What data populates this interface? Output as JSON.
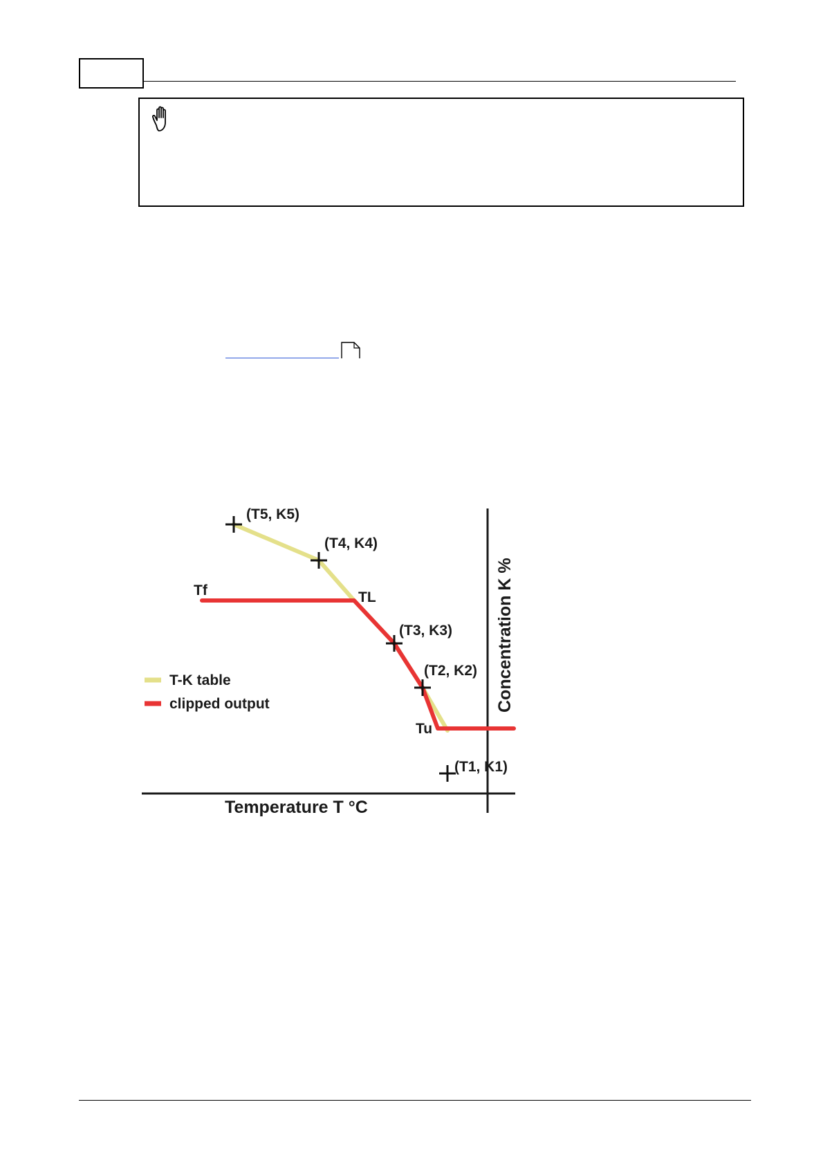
{
  "chart_data": {
    "type": "line",
    "xlabel": "Temperature T °C",
    "ylabel": "Concentration K %",
    "legend": {
      "placement": "left",
      "entries": [
        {
          "label": "T-K table",
          "color": "#e4e08a"
        },
        {
          "label": "clipped output",
          "color": "#e83434"
        }
      ]
    },
    "point_labels": [
      {
        "label": "(T5, K5)"
      },
      {
        "label": "(T4, K4)"
      },
      {
        "label": "(T3, K3)"
      },
      {
        "label": "(T2, K2)"
      },
      {
        "label": "(T1, K1)"
      }
    ],
    "annotations": {
      "tf": "Tf",
      "tl": "TL",
      "tu": "Tu"
    },
    "colors": {
      "table": "#e4e08a",
      "clipped": "#e83434",
      "axis": "#1a1a1a"
    }
  },
  "icons": {
    "note": "hand-stop-icon",
    "link": "page-reference-icon"
  }
}
